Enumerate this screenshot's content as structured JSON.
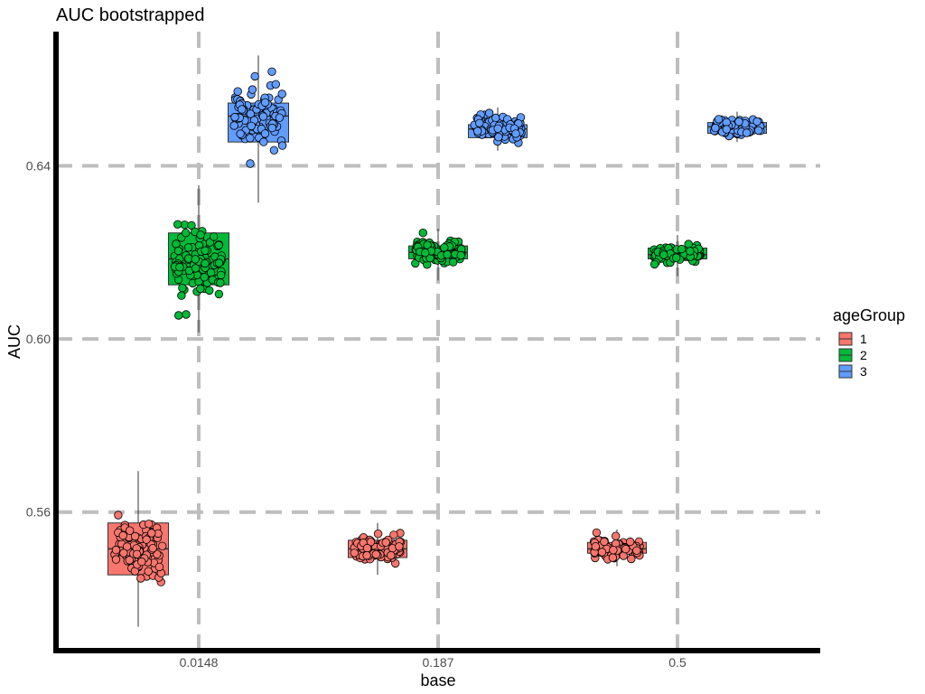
{
  "chart_data": {
    "type": "box-jitter",
    "title": "AUC bootstrapped",
    "xlabel": "base",
    "ylabel": "AUC",
    "categories": [
      "0.0148",
      "0.187",
      "0.5"
    ],
    "ylim": [
      0.528,
      0.671
    ],
    "yticks": [
      0.56,
      0.6,
      0.64
    ],
    "ytick_labels": [
      "0.56",
      "0.60",
      "0.64"
    ],
    "grid": true,
    "legend": {
      "title": "ageGroup",
      "position": "right"
    },
    "colors": {
      "1": "#f8766d",
      "2": "#00ba38",
      "3": "#619cff"
    },
    "series": [
      {
        "name": "1",
        "boxes": [
          {
            "category": "0.0148",
            "whisker_low": 0.5335,
            "q1": 0.5455,
            "median": 0.5515,
            "q3": 0.5575,
            "whisker_high": 0.5695,
            "jitter_spread": 0.007,
            "n_points": 100
          },
          {
            "category": "0.187",
            "whisker_low": 0.5455,
            "q1": 0.5495,
            "median": 0.5515,
            "q3": 0.5535,
            "whisker_high": 0.5575,
            "jitter_spread": 0.0025,
            "n_points": 100
          },
          {
            "category": "0.5",
            "whisker_low": 0.5475,
            "q1": 0.5505,
            "median": 0.5515,
            "q3": 0.553,
            "whisker_high": 0.556,
            "jitter_spread": 0.0018,
            "n_points": 100
          }
        ]
      },
      {
        "name": "2",
        "boxes": [
          {
            "category": "0.0148",
            "whisker_low": 0.6015,
            "q1": 0.6125,
            "median": 0.6185,
            "q3": 0.6245,
            "whisker_high": 0.6355,
            "jitter_spread": 0.007,
            "n_points": 100
          },
          {
            "category": "0.187",
            "whisker_low": 0.6135,
            "q1": 0.6185,
            "median": 0.62,
            "q3": 0.6215,
            "whisker_high": 0.6255,
            "jitter_spread": 0.0025,
            "n_points": 100
          },
          {
            "category": "0.5",
            "whisker_low": 0.6145,
            "q1": 0.6185,
            "median": 0.6195,
            "q3": 0.621,
            "whisker_high": 0.624,
            "jitter_spread": 0.0018,
            "n_points": 100
          }
        ]
      },
      {
        "name": "3",
        "boxes": [
          {
            "category": "0.0148",
            "whisker_low": 0.6315,
            "q1": 0.6455,
            "median": 0.6515,
            "q3": 0.6545,
            "whisker_high": 0.6655,
            "jitter_spread": 0.007,
            "n_points": 100
          },
          {
            "category": "0.187",
            "whisker_low": 0.6435,
            "q1": 0.6465,
            "median": 0.6485,
            "q3": 0.6495,
            "whisker_high": 0.6535,
            "jitter_spread": 0.0025,
            "n_points": 100
          },
          {
            "category": "0.5",
            "whisker_low": 0.6455,
            "q1": 0.6475,
            "median": 0.649,
            "q3": 0.65,
            "whisker_high": 0.6525,
            "jitter_spread": 0.0018,
            "n_points": 100
          }
        ]
      }
    ]
  }
}
